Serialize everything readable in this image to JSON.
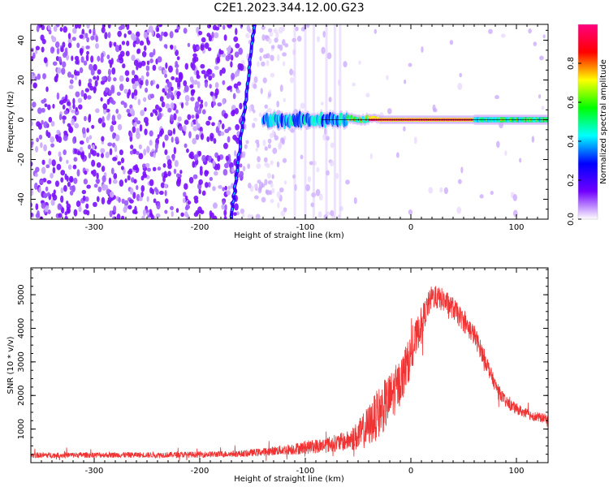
{
  "figure": {
    "title": "C2E1.2023.344.12.00.G23"
  },
  "chart_data": [
    {
      "type": "heatmap",
      "xlabel": "Height of straight line (km)",
      "ylabel": "Frequency (Hz)",
      "xlim": [
        -360,
        130
      ],
      "ylim": [
        -50,
        48
      ],
      "x_ticks": [
        -300,
        -200,
        -100,
        0,
        100
      ],
      "x_tick_labels": [
        "-300",
        "-200",
        "-100",
        "0",
        "100"
      ],
      "y_ticks": [
        -40,
        -20,
        0,
        20,
        40
      ],
      "y_tick_labels": [
        "-40",
        "-20",
        "0",
        "20",
        "40"
      ],
      "colorbar": {
        "label": "Normalized spectral amplitude",
        "range": [
          0,
          1
        ],
        "ticks": [
          0.0,
          0.2,
          0.4,
          0.6,
          0.8
        ],
        "tick_labels": [
          "0.0",
          "0.2",
          "0.4",
          "0.6",
          "0.8"
        ],
        "colormap": [
          "#ffffff",
          "#7000ff",
          "#0000ff",
          "#00ffff",
          "#00ff00",
          "#ffff00",
          "#ff0000",
          "#ff0080"
        ]
      },
      "features": [
        {
          "name": "diagonal tone",
          "x_range": [
            -170,
            -148
          ],
          "y_range": [
            -50,
            48
          ]
        },
        {
          "name": "carrier",
          "frequency_hz": 0,
          "x_range": [
            -140,
            130
          ],
          "peak_x_range": [
            -40,
            60
          ]
        }
      ]
    },
    {
      "type": "line",
      "xlabel": "Height of straight line (km)",
      "ylabel": "SNR (10 * v/v)",
      "xlim": [
        -360,
        130
      ],
      "ylim": [
        0,
        5800
      ],
      "x_ticks": [
        -300,
        -200,
        -100,
        0,
        100
      ],
      "x_tick_labels": [
        "-300",
        "-200",
        "-100",
        "0",
        "100"
      ],
      "y_ticks": [
        1000,
        2000,
        3000,
        4000,
        5000
      ],
      "y_tick_labels": [
        "1000",
        "2000",
        "3000",
        "4000",
        "5000"
      ],
      "line_color": "#f03232",
      "envelope": {
        "x": [
          -360,
          -300,
          -250,
          -200,
          -160,
          -140,
          -120,
          -100,
          -80,
          -60,
          -50,
          -40,
          -30,
          -20,
          -10,
          0,
          10,
          20,
          30,
          40,
          50,
          60,
          70,
          80,
          90,
          100,
          110,
          120,
          130
        ],
        "mean": [
          220,
          230,
          230,
          240,
          270,
          320,
          380,
          450,
          530,
          650,
          800,
          1100,
          1500,
          1900,
          2400,
          3200,
          4200,
          4950,
          4850,
          4600,
          4200,
          3800,
          3100,
          2300,
          1800,
          1600,
          1450,
          1350,
          1300
        ],
        "spread": [
          120,
          120,
          120,
          130,
          140,
          170,
          220,
          280,
          340,
          420,
          650,
          900,
          1100,
          1100,
          1000,
          900,
          650,
          500,
          500,
          480,
          450,
          450,
          380,
          280,
          250,
          230,
          220,
          210,
          200
        ]
      }
    }
  ]
}
